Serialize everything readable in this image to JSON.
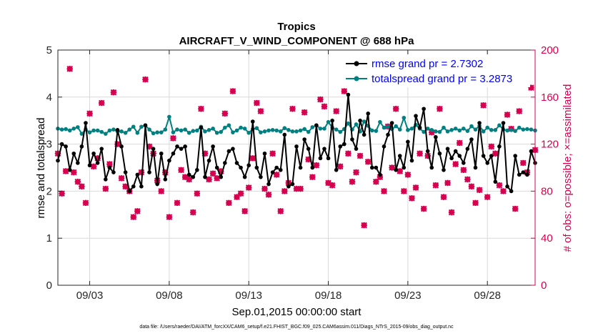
{
  "chart_data": {
    "type": "line",
    "title": "Tropics",
    "subtitle": "AIRCRAFT_V_WIND_COMPONENT @ 688 hPa",
    "xlabel": "Sep.01,2015 00:00:00 start",
    "ylabel_left": "rmse and totalspread",
    "ylabel_right": "# of obs: o=possible; ×=assimilated",
    "footnote": "data file: /Users/raeder/DAI/ATM_forcXX/CAM6_setup/f.e21.FHIST_BGC.f09_025.CAM6assim.011/Diags_NTrS_2015-09/obs_diag_output.nc",
    "xlim": [
      1.0,
      31.0
    ],
    "ylim_left": [
      0,
      5
    ],
    "ylim_right": [
      0,
      200
    ],
    "x_ticks": [
      3,
      8,
      13,
      18,
      23,
      28
    ],
    "x_tick_labels": [
      "09/03",
      "09/08",
      "09/13",
      "09/18",
      "09/23",
      "09/28"
    ],
    "y_ticks_left": [
      0,
      1,
      2,
      3,
      4,
      5
    ],
    "y_ticks_right": [
      0,
      40,
      80,
      120,
      160,
      200
    ],
    "grid": true,
    "legend_position": "top-right",
    "colors": {
      "rmse": "#000000",
      "totalspread": "#008080",
      "obs": "#d6004f",
      "legend_text": "#0000ff",
      "grid": "#d9d9d9"
    },
    "series": [
      {
        "name": "rmse grand pr = 2.7302",
        "axis": "left",
        "x_start": 1.0,
        "x_step": 0.25,
        "values": [
          2.65,
          3.0,
          2.95,
          2.45,
          2.8,
          2.6,
          2.95,
          3.45,
          2.55,
          2.8,
          2.6,
          2.9,
          2.25,
          2.5,
          2.4,
          3.3,
          2.95,
          2.4,
          2.0,
          2.1,
          2.35,
          2.1,
          3.4,
          2.4,
          2.9,
          2.15,
          2.8,
          2.25,
          2.65,
          2.8,
          2.95,
          2.9,
          2.95,
          2.35,
          2.3,
          2.45,
          3.35,
          2.3,
          2.65,
          2.95,
          2.5,
          2.3,
          2.6,
          2.85,
          2.9,
          2.6,
          2.5,
          2.3,
          2.55,
          3.48,
          2.5,
          2.3,
          2.8,
          2.15,
          2.4,
          2.5,
          2.45,
          3.2,
          2.1,
          2.15,
          2.95,
          2.5,
          3.1,
          2.9,
          2.5,
          3.4,
          2.7,
          2.9,
          2.7,
          3.5,
          2.45,
          2.95,
          3.0,
          4.05,
          3.1,
          2.9,
          3.5,
          3.2,
          3.65,
          2.5,
          2.5,
          2.35,
          2.95,
          3.2,
          3.45,
          2.45,
          2.75,
          2.5,
          3.05,
          2.65,
          3.6,
          3.35,
          3.75,
          2.85,
          2.5,
          3.15,
          2.8,
          2.45,
          2.9,
          2.7,
          2.85,
          2.75,
          2.6,
          2.9,
          3.1,
          2.5,
          3.45,
          2.75,
          2.6,
          2.75,
          2.2,
          2.95,
          3.45,
          2.1,
          2.0,
          2.75,
          2.35,
          2.4,
          2.35,
          2.85,
          2.6
        ]
      },
      {
        "name": "totalspread grand pr = 3.2873",
        "axis": "left",
        "x_start": 1.0,
        "x_step": 0.25,
        "values": [
          3.33,
          3.31,
          3.32,
          3.29,
          3.33,
          3.36,
          3.22,
          3.31,
          3.25,
          3.29,
          3.29,
          3.26,
          3.22,
          3.29,
          3.31,
          3.27,
          3.27,
          3.24,
          3.31,
          3.37,
          3.24,
          3.37,
          3.4,
          3.31,
          3.23,
          3.25,
          3.25,
          3.31,
          3.58,
          3.25,
          3.31,
          3.29,
          3.31,
          3.24,
          3.28,
          3.29,
          3.37,
          3.27,
          3.3,
          3.33,
          3.24,
          3.26,
          3.35,
          3.4,
          3.25,
          3.29,
          3.35,
          3.33,
          3.24,
          3.32,
          3.34,
          3.25,
          3.27,
          3.29,
          3.3,
          3.29,
          3.27,
          3.34,
          3.3,
          3.27,
          3.27,
          3.29,
          3.32,
          3.26,
          3.36,
          3.4,
          3.33,
          3.33,
          3.47,
          3.35,
          3.31,
          3.26,
          3.32,
          3.44,
          3.31,
          3.42,
          3.27,
          3.48,
          3.39,
          3.29,
          3.28,
          3.47,
          3.35,
          3.37,
          3.32,
          3.38,
          3.31,
          3.56,
          3.3,
          3.33,
          3.41,
          3.33,
          3.26,
          3.33,
          3.3,
          3.27,
          3.26,
          3.35,
          3.27,
          3.3,
          3.33,
          3.29,
          3.33,
          3.28,
          3.38,
          3.31,
          3.39,
          3.27,
          3.35,
          3.3,
          3.3,
          3.4,
          3.31,
          3.29,
          3.3,
          3.28,
          3.35,
          3.31,
          3.32,
          3.31,
          3.29
        ]
      },
      {
        "name": "# of obs",
        "axis": "right",
        "x_start": 1.0,
        "x_step": 0.25,
        "values": [
          112,
          78,
          97,
          184,
          96,
          88,
          84,
          70,
          146,
          101,
          108,
          155,
          82,
          103,
          164,
          120,
          91,
          84,
          80,
          58,
          63,
          96,
          175,
          118,
          112,
          89,
          80,
          96,
          58,
          125,
          70,
          98,
          92,
          90,
          62,
          78,
          150,
          112,
          90,
          95,
          91,
          97,
          146,
          70,
          165,
          75,
          78,
          63,
          83,
          108,
          155,
          148,
          82,
          77,
          112,
          94,
          63,
          80,
          87,
          150,
          82,
          82,
          147,
          107,
          92,
          102,
          158,
          152,
          87,
          85,
          148,
          101,
          165,
          112,
          88,
          96,
          110,
          51,
          105,
          178,
          88,
          92,
          80,
          135,
          100,
          150,
          97,
          80,
          94,
          74,
          83,
          112,
          65,
          110,
          130,
          85,
          150,
          75,
          87,
          62,
          103,
          121,
          98,
          90,
          84,
          70,
          81,
          153,
          75,
          118,
          112,
          85,
          80,
          145,
          133,
          65,
          148,
          104,
          96,
          168,
          115
        ]
      }
    ]
  }
}
